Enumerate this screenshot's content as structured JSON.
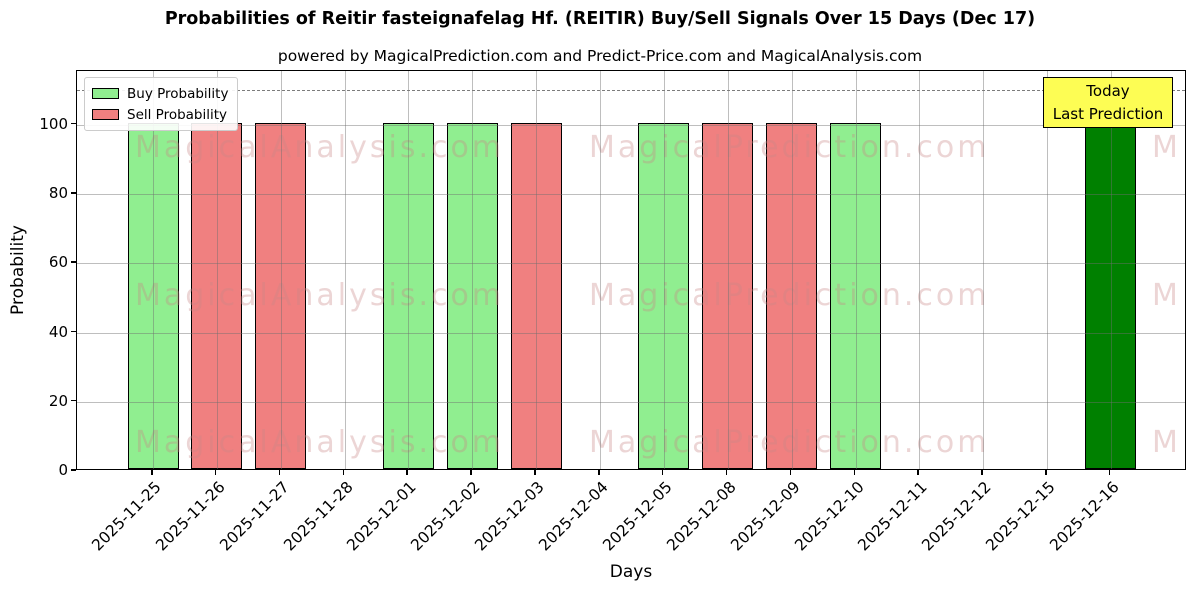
{
  "figure": {
    "title": "Probabilities of Reitir fasteignafelag Hf. (REITIR) Buy/Sell Signals Over 15 Days (Dec 17)",
    "subtitle": "powered by MagicalPrediction.com and Predict-Price.com and MagicalAnalysis.com"
  },
  "legend": {
    "items": [
      {
        "label": "Buy Probability",
        "color": "#90ee90"
      },
      {
        "label": "Sell Probability",
        "color": "#f08080"
      }
    ]
  },
  "annotation": {
    "line1": "Today",
    "line2": "Last Prediction",
    "bg_color": "#fdfd54"
  },
  "axes": {
    "xlabel": "Days",
    "ylabel": "Probability"
  },
  "watermarks": {
    "left_text": "MagicalAnalysis.com",
    "right_text": "MagicalPrediction.com",
    "partial_text": "M"
  },
  "colors": {
    "buy": "#90ee90",
    "sell": "#f08080",
    "today": "#008000",
    "grid": "#6e6e6e",
    "dashed_line": "#7c7c7c",
    "annotation_bg": "#fdfd54"
  },
  "chart_data": {
    "type": "bar",
    "title": "Probabilities of Reitir fasteignafelag Hf. (REITIR) Buy/Sell Signals Over 15 Days (Dec 17)",
    "subtitle": "powered by MagicalPrediction.com and Predict-Price.com and MagicalAnalysis.com",
    "xlabel": "Days",
    "ylabel": "Probability",
    "categories": [
      "2025-11-25",
      "2025-11-26",
      "2025-11-27",
      "2025-11-28",
      "2025-12-01",
      "2025-12-02",
      "2025-12-03",
      "2025-12-04",
      "2025-12-05",
      "2025-12-08",
      "2025-12-09",
      "2025-12-10",
      "2025-12-11",
      "2025-12-12",
      "2025-12-15",
      "2025-12-16"
    ],
    "series": [
      {
        "name": "Buy Probability",
        "color": "#90ee90",
        "values": [
          100,
          0,
          0,
          0,
          100,
          100,
          0,
          0,
          100,
          0,
          0,
          100,
          0,
          0,
          0,
          0
        ]
      },
      {
        "name": "Sell Probability",
        "color": "#f08080",
        "values": [
          0,
          100,
          100,
          0,
          0,
          0,
          100,
          0,
          0,
          100,
          100,
          0,
          0,
          0,
          0,
          0
        ]
      },
      {
        "name": "Today Last Prediction",
        "color": "#008000",
        "values": [
          0,
          0,
          0,
          0,
          0,
          0,
          0,
          0,
          0,
          0,
          0,
          0,
          0,
          0,
          0,
          100
        ]
      }
    ],
    "yticks": [
      0,
      20,
      40,
      60,
      80,
      100
    ],
    "ylim": [
      0,
      115.6
    ],
    "dashed_line_y": 110,
    "grid": true,
    "legend_position": "upper left",
    "x_tick_rotation": 45
  }
}
